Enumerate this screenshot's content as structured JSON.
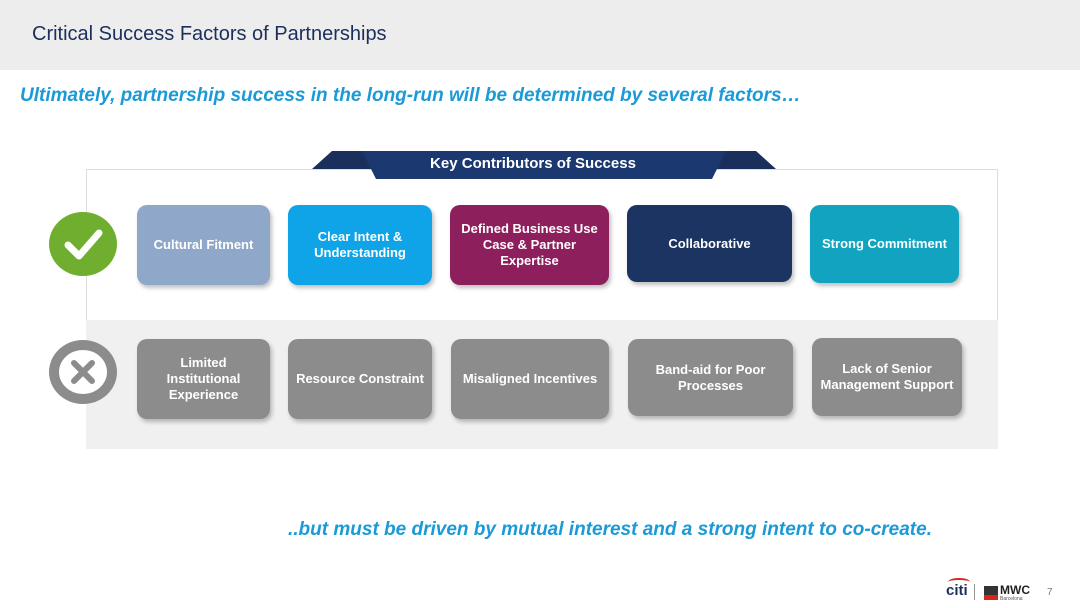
{
  "header": {
    "title": "Critical Success Factors of Partnerships"
  },
  "subtitle": "Ultimately, partnership success in the long-run will be determined by several factors…",
  "banner": {
    "label": "Key Contributors of Success",
    "color": "#1b2f5c"
  },
  "success_row": {
    "icon": "check-circle-icon",
    "icon_color": "#6fae2e",
    "cards": [
      {
        "label": "Cultural Fitment",
        "color": "#8fa7c9"
      },
      {
        "label": "Clear Intent & Understanding",
        "color": "#0fa4e8"
      },
      {
        "label": "Defined Business Use Case & Partner Expertise",
        "color": "#8e1f5d"
      },
      {
        "label": "Collaborative",
        "color": "#1b3461"
      },
      {
        "label": "Strong Commitment",
        "color": "#11a3bf"
      }
    ]
  },
  "failure_row": {
    "icon": "x-circle-icon",
    "icon_color": "#8c8c8c",
    "cards": [
      {
        "label": "Limited Institutional Experience",
        "color": "#8c8c8c"
      },
      {
        "label": "Resource Constraint",
        "color": "#8c8c8c"
      },
      {
        "label": "Misaligned Incentives",
        "color": "#8c8c8c"
      },
      {
        "label": "Band-aid for Poor Processes",
        "color": "#8c8c8c"
      },
      {
        "label": "Lack of Senior Management Support",
        "color": "#8c8c8c"
      }
    ]
  },
  "closing": "..but must be driven by mutual interest and a strong intent to co-create.",
  "footer": {
    "logo_citi": "citi",
    "logo_mwc": "MWC",
    "logo_mwc_sub": "Barcelona",
    "page_number": "7"
  }
}
